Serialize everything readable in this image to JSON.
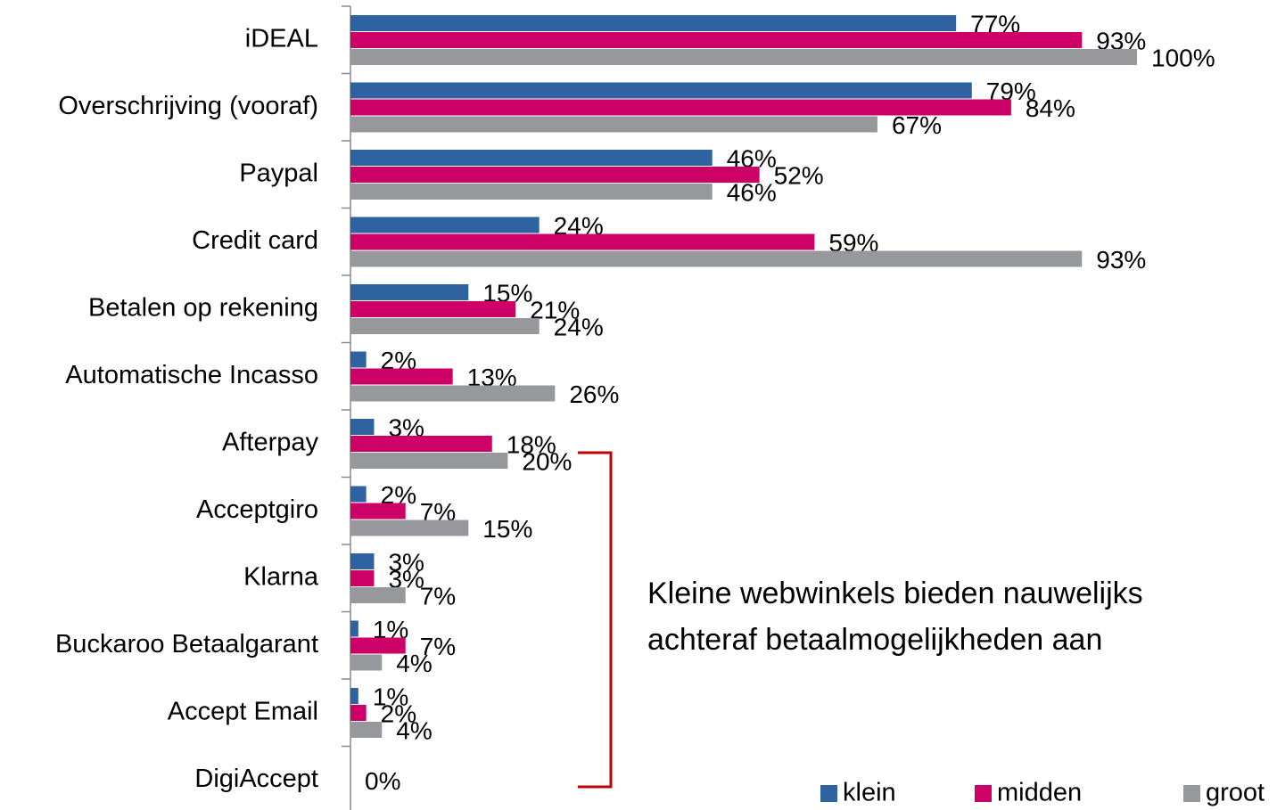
{
  "chart_data": {
    "type": "hbar",
    "categories": [
      "iDEAL",
      "Overschrijving (vooraf)",
      "Paypal",
      "Credit card",
      "Betalen op rekening",
      "Automatische Incasso",
      "Afterpay",
      "Acceptgiro",
      "Klarna",
      "Buckaroo Betaalgarant",
      "Accept Email",
      "DigiAccept"
    ],
    "series": [
      {
        "name": "klein",
        "color": "#2e62a0",
        "values": [
          77,
          79,
          46,
          24,
          15,
          2,
          3,
          2,
          3,
          1,
          1,
          0
        ],
        "value_labels": [
          "77%",
          "79%",
          "46%",
          "24%",
          "15%",
          "2%",
          "3%",
          "2%",
          "3%",
          "1%",
          "1%",
          null
        ]
      },
      {
        "name": "midden",
        "color": "#cc0066",
        "values": [
          93,
          84,
          52,
          59,
          21,
          13,
          18,
          7,
          3,
          7,
          2,
          0
        ],
        "value_labels": [
          "93%",
          "84%",
          "52%",
          "59%",
          "21%",
          "13%",
          "18%",
          "7%",
          "3%",
          "7%",
          "2%",
          "0%"
        ]
      },
      {
        "name": "groot",
        "color": "#97989c",
        "values": [
          100,
          67,
          46,
          93,
          24,
          26,
          20,
          15,
          7,
          4,
          4,
          0
        ],
        "value_labels": [
          "100%",
          "67%",
          "46%",
          "93%",
          "24%",
          "26%",
          "20%",
          "15%",
          "7%",
          "4%",
          "4%",
          null
        ]
      }
    ],
    "xlim": [
      0,
      100
    ],
    "annotation": [
      "Kleine webwinkels bieden nauwelijks",
      "achteraf betaalmogelijkheden aan"
    ],
    "legend": "lower right"
  }
}
